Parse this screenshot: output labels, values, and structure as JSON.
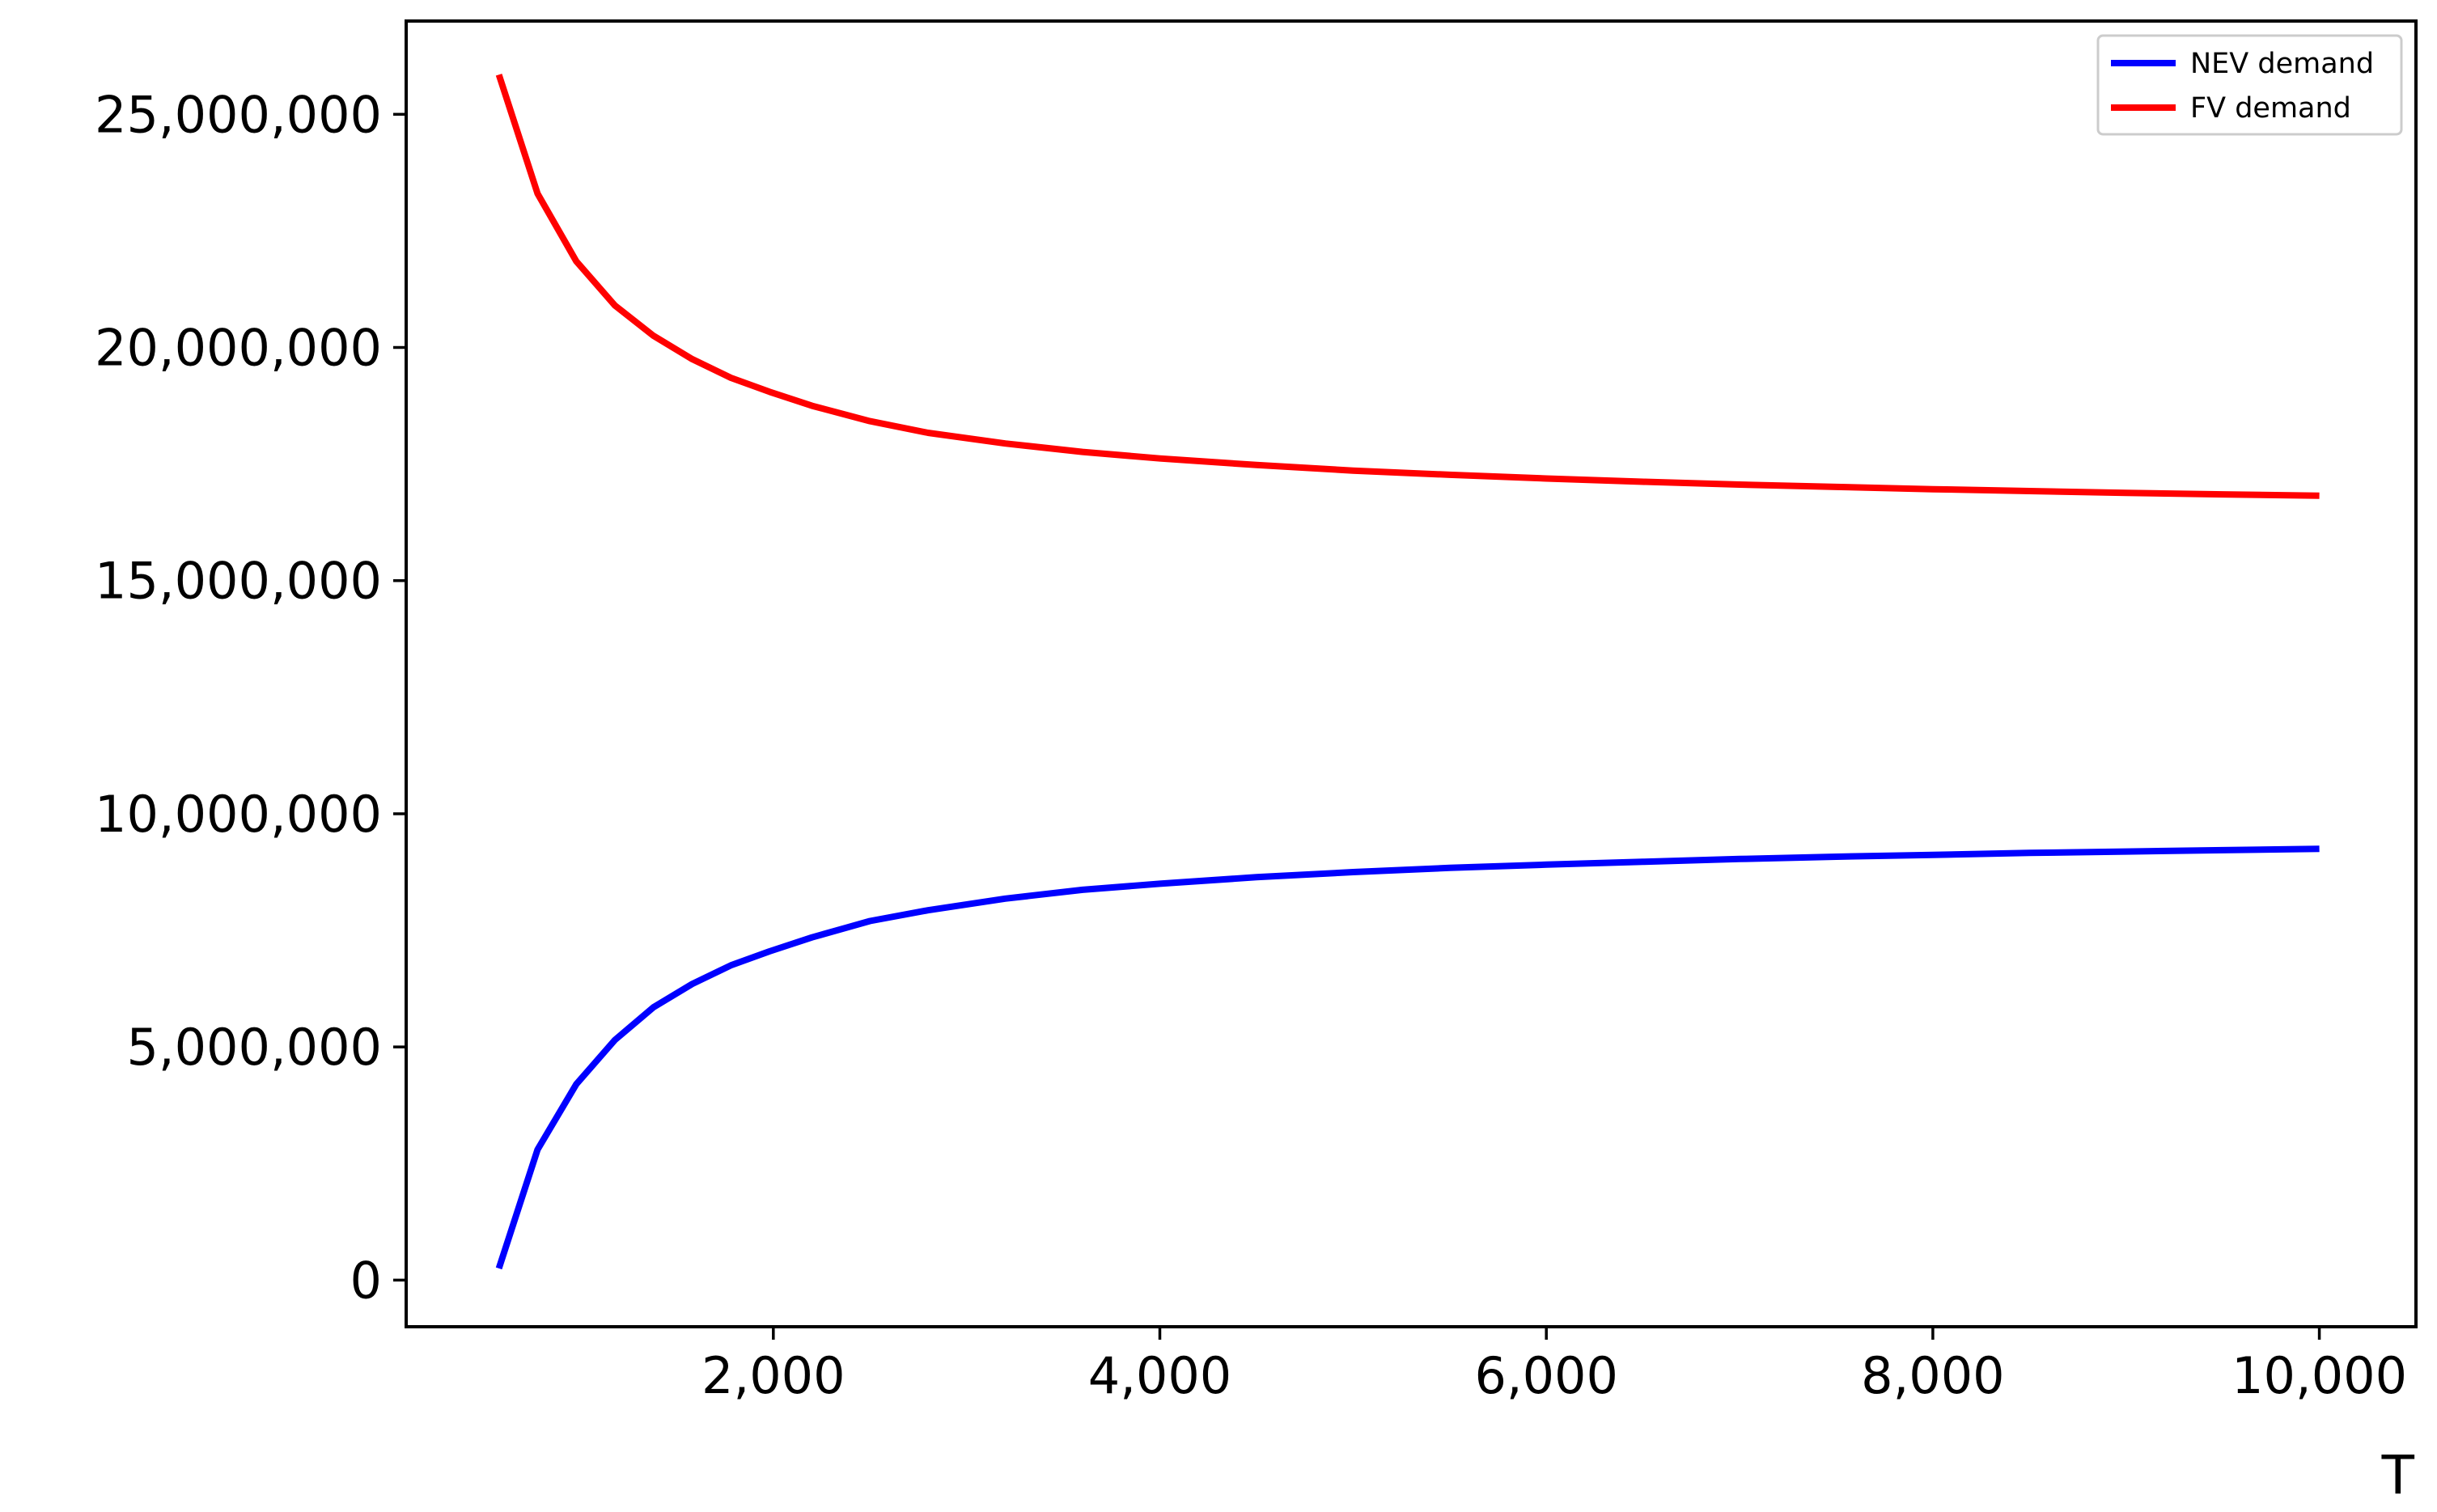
{
  "chart_data": {
    "type": "line",
    "title": "",
    "xlabel": "T",
    "ylabel": "",
    "xlim": [
      100,
      10500
    ],
    "ylim": [
      -1000000,
      27000000
    ],
    "xticks": [
      2000,
      4000,
      6000,
      8000,
      10000
    ],
    "xtick_labels": [
      "2,000",
      "4,000",
      "6,000",
      "8,000",
      "10,000"
    ],
    "yticks": [
      0,
      5000000,
      10000000,
      15000000,
      20000000,
      25000000
    ],
    "ytick_labels": [
      "0",
      "5,000,000",
      "10,000,000",
      "15,000,000",
      "20,000,000",
      "25,000,000"
    ],
    "grid": false,
    "legend_position": "top-right",
    "x": [
      580,
      780,
      980,
      1180,
      1380,
      1580,
      1780,
      1980,
      2200,
      2500,
      2800,
      3200,
      3600,
      4000,
      4500,
      5000,
      5500,
      6000,
      6500,
      7000,
      7500,
      8000,
      8500,
      9000,
      9500,
      10000
    ],
    "series": [
      {
        "name": "NEV demand",
        "color": "#0000ff",
        "values": [
          250000,
          2800000,
          4200000,
          5150000,
          5850000,
          6350000,
          6750000,
          7050000,
          7350000,
          7700000,
          7930000,
          8180000,
          8370000,
          8500000,
          8640000,
          8750000,
          8840000,
          8910000,
          8970000,
          9030000,
          9080000,
          9120000,
          9160000,
          9190000,
          9220000,
          9250000
        ]
      },
      {
        "name": "FV demand",
        "color": "#ff0000",
        "values": [
          25850000,
          23300000,
          21850000,
          20900000,
          20250000,
          19750000,
          19350000,
          19050000,
          18750000,
          18420000,
          18170000,
          17940000,
          17760000,
          17620000,
          17480000,
          17360000,
          17270000,
          17190000,
          17120000,
          17060000,
          17010000,
          16960000,
          16920000,
          16880000,
          16850000,
          16820000
        ]
      }
    ]
  }
}
